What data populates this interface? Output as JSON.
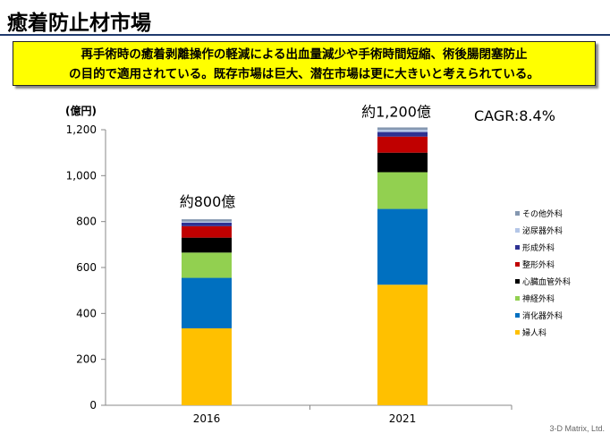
{
  "title": "癒着防止材市場",
  "callout": {
    "line1": "再手術時の癒着剥離操作の軽減による出血量減少や手術時間短縮、術後腸閉塞防止",
    "line2": "の目的で適用されている。既存市場は巨大、潜在市場は更に大きいと考えられている。"
  },
  "footer": "3-D Matrix, Ltd.",
  "chart_data": {
    "type": "bar",
    "stacked": true,
    "title": "",
    "ylabel": "(億円)",
    "ylim": [
      0,
      1200
    ],
    "yticks": [
      0,
      200,
      400,
      600,
      800,
      1000,
      1200
    ],
    "ytick_labels": [
      "0",
      "200",
      "400",
      "600",
      "800",
      "1,000",
      "1,200"
    ],
    "categories": [
      "2016",
      "2021"
    ],
    "series": [
      {
        "name": "婦人科",
        "color": "#ffc000",
        "values": [
          335,
          525
        ]
      },
      {
        "name": "消化器外科",
        "color": "#0070c0",
        "values": [
          220,
          330
        ]
      },
      {
        "name": "神経外科",
        "color": "#92d050",
        "values": [
          110,
          160
        ]
      },
      {
        "name": "心臓血管外科",
        "color": "#000000",
        "values": [
          65,
          85
        ]
      },
      {
        "name": "整形外科",
        "color": "#c00000",
        "values": [
          50,
          70
        ]
      },
      {
        "name": "形成外科",
        "color": "#2e3192",
        "values": [
          15,
          20
        ]
      },
      {
        "name": "泌尿器外科",
        "color": "#b4c6e7",
        "values": [
          5,
          10
        ]
      },
      {
        "name": "その他外科",
        "color": "#8497b0",
        "values": [
          10,
          10
        ]
      }
    ],
    "annotations": [
      "約800億",
      "約1,200億"
    ],
    "cagr": "CAGR:8.4%"
  }
}
